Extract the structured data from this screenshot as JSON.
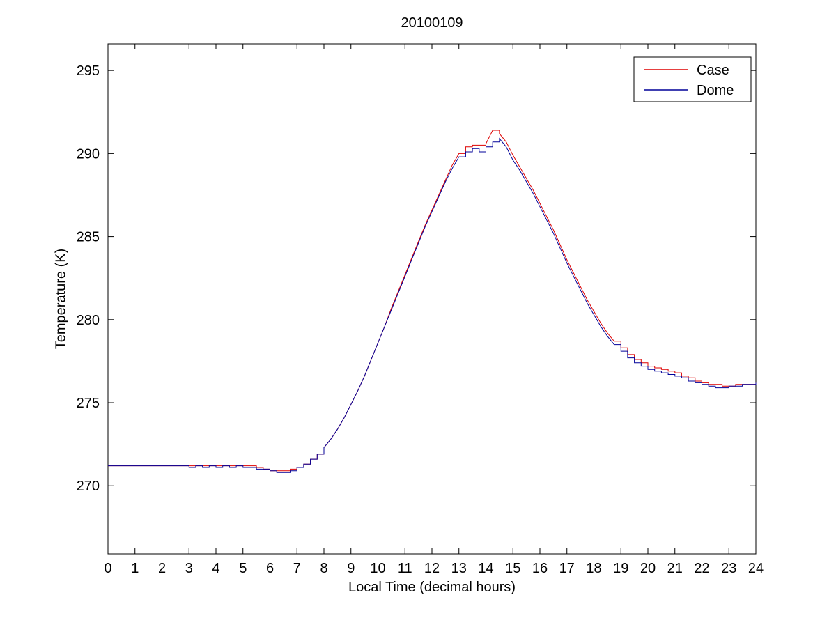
{
  "chart_data": {
    "type": "line",
    "title": "20100109",
    "xlabel": "Local Time (decimal hours)",
    "ylabel": "Temperature (K)",
    "xlim": [
      0,
      24
    ],
    "ylim": [
      265.9,
      296.6
    ],
    "xticks": [
      0,
      1,
      2,
      3,
      4,
      5,
      6,
      7,
      8,
      9,
      10,
      11,
      12,
      13,
      14,
      15,
      16,
      17,
      18,
      19,
      20,
      21,
      22,
      23,
      24
    ],
    "yticks": [
      270,
      275,
      280,
      285,
      290,
      295
    ],
    "grid": false,
    "legend_position": "top-right",
    "x_units": "decimal hours",
    "x_start": 0,
    "x_step": 0.25,
    "series": [
      {
        "name": "Case",
        "color": "#dd0000",
        "values": [
          271.2,
          271.2,
          271.2,
          271.2,
          271.2,
          271.2,
          271.2,
          271.2,
          271.2,
          271.2,
          271.2,
          271.2,
          271.2,
          271.2,
          271.2,
          271.2,
          271.2,
          271.2,
          271.2,
          271.2,
          271.2,
          271.2,
          271.1,
          271.0,
          270.9,
          270.9,
          270.9,
          271.0,
          271.1,
          271.3,
          271.6,
          271.9,
          272.3,
          272.8,
          273.4,
          274.1,
          274.9,
          275.7,
          276.6,
          277.6,
          278.6,
          279.6,
          280.7,
          281.7,
          282.7,
          283.7,
          284.7,
          285.7,
          286.6,
          287.5,
          288.4,
          289.3,
          290.0,
          290.4,
          290.5,
          290.5,
          290.6,
          291.4,
          291.2,
          290.7,
          289.9,
          289.2,
          288.5,
          287.8,
          287.0,
          286.2,
          285.4,
          284.5,
          283.6,
          282.8,
          282.0,
          281.2,
          280.5,
          279.8,
          279.2,
          278.7,
          278.3,
          277.9,
          277.6,
          277.4,
          277.2,
          277.1,
          277.0,
          276.9,
          276.8,
          276.6,
          276.5,
          276.3,
          276.2,
          276.1,
          276.1,
          276.0,
          276.0,
          276.1,
          276.1,
          276.1,
          276.2
        ]
      },
      {
        "name": "Dome",
        "color": "#000099",
        "values": [
          271.2,
          271.2,
          271.2,
          271.2,
          271.2,
          271.2,
          271.2,
          271.2,
          271.2,
          271.2,
          271.2,
          271.2,
          271.1,
          271.2,
          271.1,
          271.2,
          271.1,
          271.2,
          271.1,
          271.2,
          271.1,
          271.1,
          271.0,
          271.0,
          270.9,
          270.8,
          270.8,
          270.9,
          271.1,
          271.3,
          271.6,
          271.9,
          272.3,
          272.8,
          273.4,
          274.1,
          274.9,
          275.7,
          276.6,
          277.6,
          278.6,
          279.6,
          280.6,
          281.6,
          282.6,
          283.6,
          284.6,
          285.6,
          286.5,
          287.4,
          288.3,
          289.1,
          289.8,
          290.1,
          290.3,
          290.1,
          290.4,
          290.7,
          290.9,
          290.4,
          289.6,
          289.0,
          288.3,
          287.6,
          286.8,
          286.0,
          285.2,
          284.3,
          283.4,
          282.6,
          281.8,
          281.0,
          280.3,
          279.6,
          279.0,
          278.5,
          278.1,
          277.7,
          277.4,
          277.2,
          277.0,
          276.9,
          276.8,
          276.7,
          276.6,
          276.5,
          276.3,
          276.2,
          276.1,
          276.0,
          275.9,
          275.9,
          276.0,
          276.0,
          276.1,
          276.1,
          276.2
        ]
      }
    ]
  }
}
